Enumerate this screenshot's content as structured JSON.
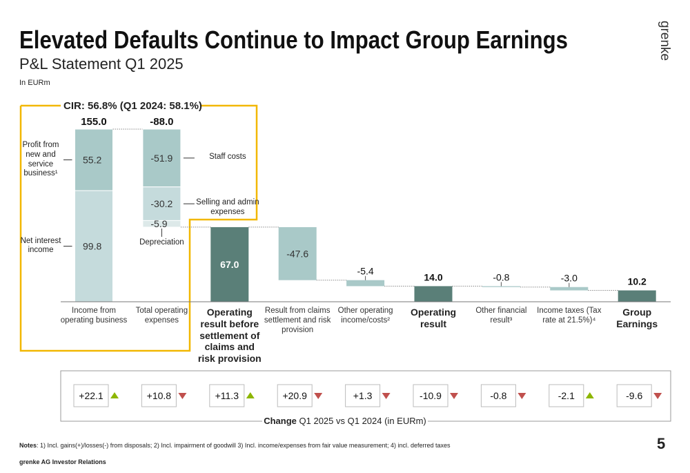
{
  "header": {
    "title": "Elevated Defaults Continue to Impact Group Earnings",
    "subtitle": "P&L Statement Q1 2025",
    "unit": "In EURm",
    "brand": "grenke",
    "page": "5"
  },
  "chart_data": {
    "type": "waterfall",
    "annotation": "CIR: 56.8% (Q1 2024: 58.1%)",
    "categories": [
      "Income from operating business",
      "Total operating expenses",
      "Operating result before settlement of claims and risk provision",
      "Result from claims settlement and risk provision",
      "Other operating income/costs²",
      "Operating result",
      "Other financial result³",
      "Income taxes (Tax rate at 21.5%)⁴",
      "Group Earnings"
    ],
    "values": [
      155.0,
      -88.0,
      67.0,
      -47.6,
      -5.4,
      14.0,
      -0.8,
      -3.0,
      10.2
    ],
    "value_labels": [
      "155.0",
      "-88.0",
      "67.0",
      "-47.6",
      "-5.4",
      "14.0",
      "-0.8",
      "-3.0",
      "10.2"
    ],
    "measure": [
      "relative",
      "relative",
      "total",
      "relative",
      "relative",
      "total",
      "relative",
      "relative",
      "total"
    ],
    "total_color": "#5a7f78",
    "delta_color": "#a9c9c8",
    "breakdowns": [
      [
        {
          "label": "Net interest income",
          "value": 99.8,
          "color": "#c5dbdc"
        },
        {
          "label": "Profit from new and service business¹",
          "value": 55.2,
          "color": "#a9c9c8"
        }
      ],
      [
        {
          "label": "Staff costs",
          "value": -51.9,
          "color": "#a9c9c8"
        },
        {
          "label": "Selling and admin expenses",
          "value": -30.2,
          "color": "#c5dbdc"
        },
        {
          "label": "Depreciation",
          "value": -5.9,
          "color": "#dde9e9"
        }
      ],
      null,
      null,
      null,
      null,
      null,
      null,
      null
    ]
  },
  "changes": {
    "title_bold": "Change",
    "title_rest": "Q1 2025 vs Q1 2024 (in EURm)",
    "values": [
      22.1,
      10.8,
      11.3,
      20.9,
      1.3,
      -10.9,
      -0.8,
      -2.1,
      -9.6
    ],
    "value_labels": [
      "+22.1",
      "+10.8",
      "+11.3",
      "+20.9",
      "+1.3",
      "-10.9",
      "-0.8",
      "-2.1",
      "-9.6"
    ],
    "directions": [
      "up",
      "down",
      "up",
      "down",
      "down",
      "down",
      "down",
      "up",
      "down"
    ],
    "up_color": "#8db600",
    "down_color": "#c0504d"
  },
  "footer": {
    "notes_label": "Notes",
    "notes_text": ": 1) Incl. gains(+)/losses(-) from disposals; 2) Incl. impairment of goodwill 3) Incl. income/expenses from fair value measurement; 4) incl. deferred taxes",
    "company": "grenke AG Investor Relations"
  }
}
